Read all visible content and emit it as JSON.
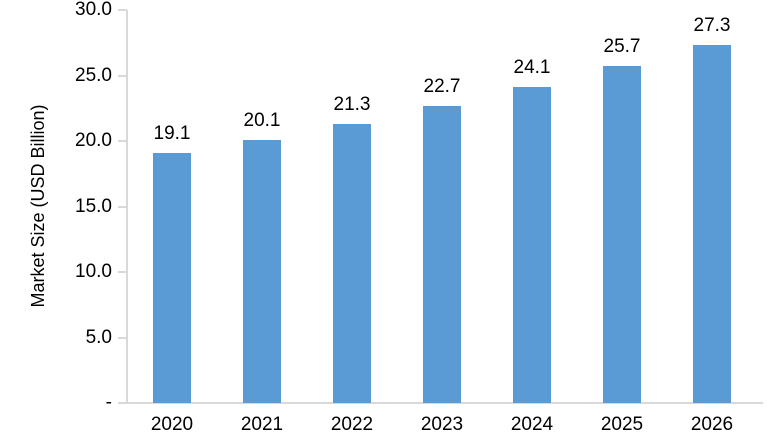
{
  "chart_data": {
    "type": "bar",
    "title": "",
    "xlabel": "",
    "ylabel": "Market Size (USD Billion)",
    "categories": [
      "2020",
      "2021",
      "2022",
      "2023",
      "2024",
      "2025",
      "2026"
    ],
    "values": [
      19.1,
      20.1,
      21.3,
      22.7,
      24.1,
      25.7,
      27.3
    ],
    "value_labels": [
      "19.1",
      "20.1",
      "21.3",
      "22.7",
      "24.1",
      "25.7",
      "27.3"
    ],
    "ylim": [
      0,
      30
    ],
    "yticks": [
      {
        "value": 30,
        "label": "30.0"
      },
      {
        "value": 25,
        "label": "25.0"
      },
      {
        "value": 20,
        "label": "20.0"
      },
      {
        "value": 15,
        "label": "15.0"
      },
      {
        "value": 10,
        "label": "10.0"
      },
      {
        "value": 5,
        "label": "5.0"
      },
      {
        "value": 0,
        "label": "-"
      }
    ],
    "grid": false,
    "legend": false,
    "bar_color": "#5B9BD5",
    "axis_color": "#D9D9D9",
    "text_color": "#000000"
  }
}
